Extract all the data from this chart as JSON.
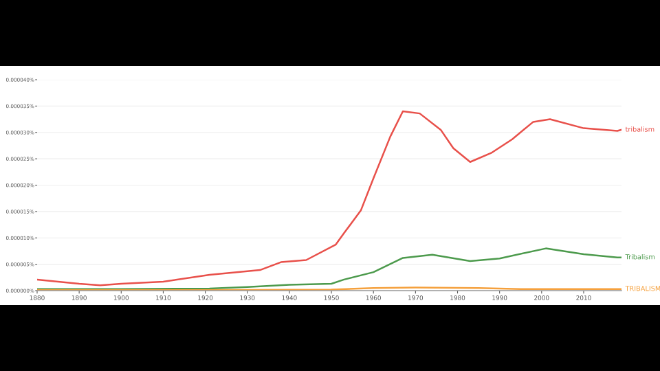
{
  "chart_data": {
    "type": "line",
    "x": [
      1880,
      1890,
      1895,
      1900,
      1910,
      1921,
      1933,
      1938,
      1944,
      1951,
      1953,
      1957,
      1960,
      1964,
      1967,
      1971,
      1976,
      1979,
      1983,
      1988,
      1993,
      1998,
      2002,
      2010,
      2018,
      2019
    ],
    "series": [
      {
        "name": "tribalism",
        "color": "#e8504a",
        "values": [
          2.1e-06,
          1.3e-06,
          1e-06,
          1.3e-06,
          1.7e-06,
          3e-06,
          3.9e-06,
          5.4e-06,
          5.8e-06,
          8.7e-06,
          1.09e-05,
          1.52e-05,
          2.13e-05,
          2.92e-05,
          3.4e-05,
          3.36e-05,
          3.05e-05,
          2.7e-05,
          2.44e-05,
          2.61e-05,
          2.87e-05,
          3.2e-05,
          3.25e-05,
          3.08e-05,
          3.03e-05,
          3.05e-05
        ]
      },
      {
        "name": "Tribalism",
        "color": "#4c9a4c",
        "x": [
          1880,
          1900,
          1921,
          1930,
          1940,
          1950,
          1953,
          1960,
          1967,
          1974,
          1983,
          1990,
          2001,
          2010,
          2018,
          2019
        ],
        "values": [
          3e-07,
          3e-07,
          4e-07,
          7e-07,
          1.1e-06,
          1.3e-06,
          2.1e-06,
          3.5e-06,
          6.2e-06,
          6.8e-06,
          5.6e-06,
          6.1e-06,
          8e-06,
          6.9e-06,
          6.3e-06,
          6.3e-06
        ]
      },
      {
        "name": "TRIBALISM",
        "color": "#f5a03c",
        "x": [
          1880,
          1920,
          1950,
          1960,
          1970,
          1985,
          1995,
          2019
        ],
        "values": [
          1e-07,
          1e-07,
          2e-07,
          5e-07,
          6e-07,
          5e-07,
          3e-07,
          3e-07
        ]
      }
    ],
    "xlim": [
      1880,
      2019
    ],
    "xticks": [
      1880,
      1890,
      1900,
      1910,
      1920,
      1930,
      1940,
      1950,
      1960,
      1970,
      1980,
      1990,
      2000,
      2010
    ],
    "ylim": [
      0,
      4e-05
    ],
    "yticks": [
      {
        "value": 0,
        "label": "0.000000%"
      },
      {
        "value": 5e-06,
        "label": "0.000005%"
      },
      {
        "value": 1e-05,
        "label": "0.000010%"
      },
      {
        "value": 1.5e-05,
        "label": "0.000015%"
      },
      {
        "value": 2e-05,
        "label": "0.000020%"
      },
      {
        "value": 2.5e-05,
        "label": "0.000025%"
      },
      {
        "value": 3e-05,
        "label": "0.000030%"
      },
      {
        "value": 3.5e-05,
        "label": "0.000035%"
      },
      {
        "value": 4e-05,
        "label": "0.000040%"
      }
    ],
    "grid": "y",
    "legend": false,
    "marker": "none",
    "line_style": "solid"
  }
}
